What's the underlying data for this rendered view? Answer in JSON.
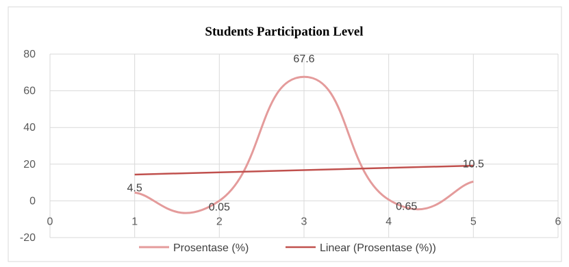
{
  "chart_data": {
    "type": "line",
    "title": "Students Participation Level",
    "xlabel": "",
    "ylabel": "",
    "x": [
      1,
      2,
      3,
      4,
      5
    ],
    "xlim": [
      0,
      6
    ],
    "ylim": [
      -20,
      80
    ],
    "x_ticks": [
      "0",
      "1",
      "2",
      "3",
      "4",
      "5",
      "6"
    ],
    "y_ticks": [
      "-20",
      "0",
      "20",
      "40",
      "60",
      "80"
    ],
    "grid": true,
    "legend_position": "bottom",
    "series": [
      {
        "name": "Prosentase (%)",
        "values": [
          4.5,
          0.05,
          67.6,
          0.65,
          10.5
        ],
        "data_labels": [
          "4.5",
          "0.05",
          "67.6",
          "0.65",
          "10.5"
        ],
        "color": "#E49B9B",
        "smooth": true
      },
      {
        "name": "Linear (Prosentase (%))",
        "trendline_y": [
          14.34,
          19.19
        ],
        "trendline_x": [
          1,
          5
        ],
        "color": "#C0504D"
      }
    ]
  }
}
